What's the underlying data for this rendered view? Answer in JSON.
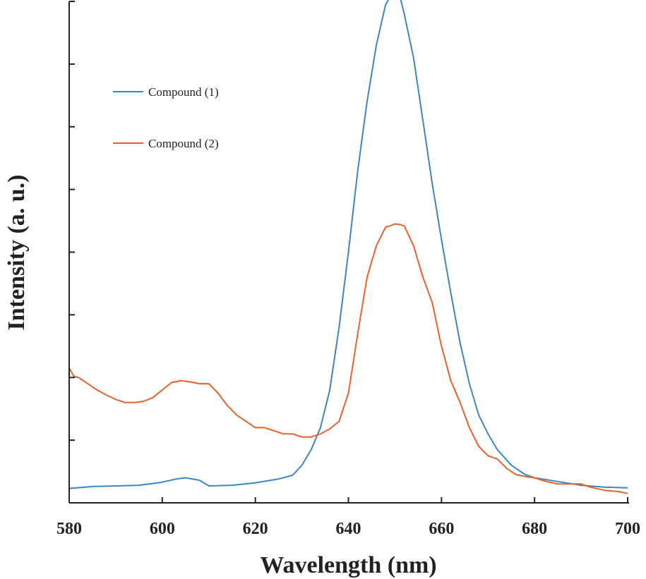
{
  "chart_data": {
    "type": "line",
    "xlabel": "Wavelength (nm)",
    "ylabel": "Intensity (a. u.)",
    "xlim": [
      580,
      700
    ],
    "ylim": [
      0,
      8
    ],
    "x_ticks": [
      580,
      600,
      620,
      640,
      660,
      680,
      700
    ],
    "x_tick_labels": [
      "580",
      "600",
      "620",
      "640",
      "660",
      "680",
      "700"
    ],
    "y_tick_count": 9,
    "y_tick_labels_shown": false,
    "grid": false,
    "legend_position": "top-left",
    "series": [
      {
        "name": "Compound (1)",
        "color": "#3a86c8",
        "x": [
          580,
          585,
          590,
          595,
          600,
          603,
          605,
          608,
          610,
          615,
          620,
          625,
          628,
          630,
          632,
          634,
          636,
          638,
          640,
          642,
          644,
          646,
          648,
          650,
          651,
          652,
          654,
          656,
          658,
          660,
          662,
          664,
          666,
          668,
          670,
          672,
          675,
          678,
          680,
          685,
          690,
          695,
          700
        ],
        "y": [
          0.23,
          0.26,
          0.27,
          0.28,
          0.33,
          0.38,
          0.4,
          0.36,
          0.27,
          0.28,
          0.32,
          0.38,
          0.44,
          0.6,
          0.85,
          1.2,
          1.8,
          2.8,
          4.0,
          5.3,
          6.4,
          7.3,
          7.95,
          8.2,
          8.1,
          7.8,
          7.1,
          6.1,
          5.1,
          4.2,
          3.35,
          2.55,
          1.9,
          1.4,
          1.1,
          0.85,
          0.6,
          0.45,
          0.4,
          0.34,
          0.28,
          0.25,
          0.24
        ]
      },
      {
        "name": "Compound (2)",
        "color": "#e8622a",
        "x": [
          580,
          581,
          582,
          584,
          586,
          588,
          590,
          592,
          594,
          596,
          598,
          600,
          602,
          604,
          606,
          608,
          610,
          612,
          614,
          616,
          618,
          620,
          622,
          624,
          626,
          628,
          630,
          632,
          634,
          636,
          638,
          640,
          642,
          644,
          646,
          648,
          649,
          650,
          651,
          652,
          654,
          656,
          658,
          660,
          662,
          664,
          666,
          668,
          670,
          672,
          674,
          676,
          678,
          680,
          682,
          685,
          688,
          690,
          692,
          695,
          698,
          700
        ],
        "y": [
          2.15,
          2.02,
          2.0,
          1.9,
          1.8,
          1.72,
          1.65,
          1.6,
          1.6,
          1.62,
          1.68,
          1.8,
          1.92,
          1.95,
          1.93,
          1.9,
          1.9,
          1.75,
          1.55,
          1.4,
          1.3,
          1.2,
          1.2,
          1.15,
          1.1,
          1.1,
          1.05,
          1.05,
          1.1,
          1.18,
          1.3,
          1.75,
          2.7,
          3.6,
          4.1,
          4.4,
          4.42,
          4.45,
          4.44,
          4.42,
          4.1,
          3.6,
          3.2,
          2.5,
          1.95,
          1.6,
          1.2,
          0.9,
          0.75,
          0.7,
          0.55,
          0.45,
          0.42,
          0.4,
          0.35,
          0.3,
          0.3,
          0.3,
          0.25,
          0.2,
          0.18,
          0.15
        ]
      }
    ]
  }
}
